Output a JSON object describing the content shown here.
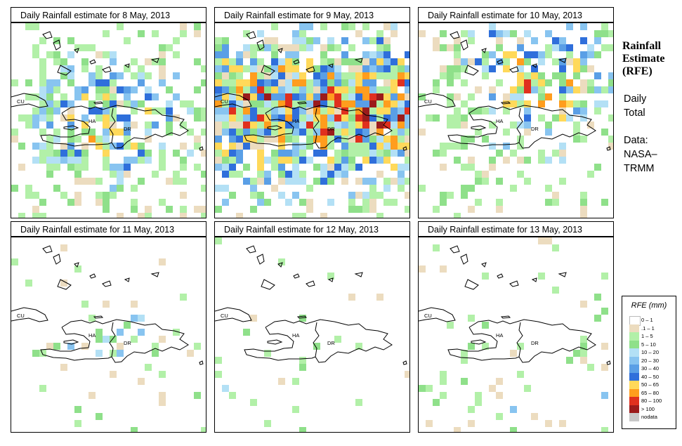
{
  "panels": [
    {
      "title": "Daily Rainfall estimate for  8 May, 2013",
      "density": 0.55,
      "intensity": 0.8,
      "seed": 11,
      "focus": "center"
    },
    {
      "title": "Daily Rainfall estimate for  9 May, 2013",
      "density": 0.75,
      "intensity": 1.0,
      "seed": 23,
      "focus": "wide"
    },
    {
      "title": "Daily Rainfall estimate for  10 May, 2013",
      "density": 0.5,
      "intensity": 0.9,
      "seed": 37,
      "focus": "northeast"
    },
    {
      "title": "Daily Rainfall estimate for  11 May, 2013",
      "density": 0.12,
      "intensity": 0.3,
      "seed": 41,
      "focus": "center"
    },
    {
      "title": "Daily Rainfall estimate for  12 May, 2013",
      "density": 0.04,
      "intensity": 0.15,
      "seed": 53,
      "focus": "south"
    },
    {
      "title": "Daily Rainfall estimate for  13 May, 2013",
      "density": 0.07,
      "intensity": 0.15,
      "seed": 67,
      "focus": "south"
    }
  ],
  "map_labels": {
    "cuba": "CU",
    "haiti": "HA",
    "dominican_republic": "DR"
  },
  "side": {
    "title_line1": "Rainfall",
    "title_line2": "Estimate",
    "title_line3": "(RFE)",
    "period_line1": "Daily",
    "period_line2": "Total",
    "source_line1": "Data:",
    "source_line2": "NASA–",
    "source_line3": "TRMM"
  },
  "legend": {
    "title": "RFE (mm)",
    "items": [
      {
        "label": "0 – 1",
        "color": "#ffffff"
      },
      {
        "label": ".1 – 1",
        "color": "#ecdcbf"
      },
      {
        "label": "1 – 5",
        "color": "#b2f0a8"
      },
      {
        "label": "5 – 10",
        "color": "#8fe08a"
      },
      {
        "label": "10 – 20",
        "color": "#b3e0f5"
      },
      {
        "label": "20 – 30",
        "color": "#88c4f0"
      },
      {
        "label": "30 – 40",
        "color": "#5a9fe6"
      },
      {
        "label": "40 – 50",
        "color": "#2f6fdb"
      },
      {
        "label": "50 – 65",
        "color": "#ffd95a"
      },
      {
        "label": "65 – 80",
        "color": "#ff9d1e"
      },
      {
        "label": "80 – 100",
        "color": "#e0301e"
      },
      {
        "label": "> 100",
        "color": "#9b1b1b"
      },
      {
        "label": "nodata",
        "color": "#c8c8c8"
      }
    ]
  }
}
